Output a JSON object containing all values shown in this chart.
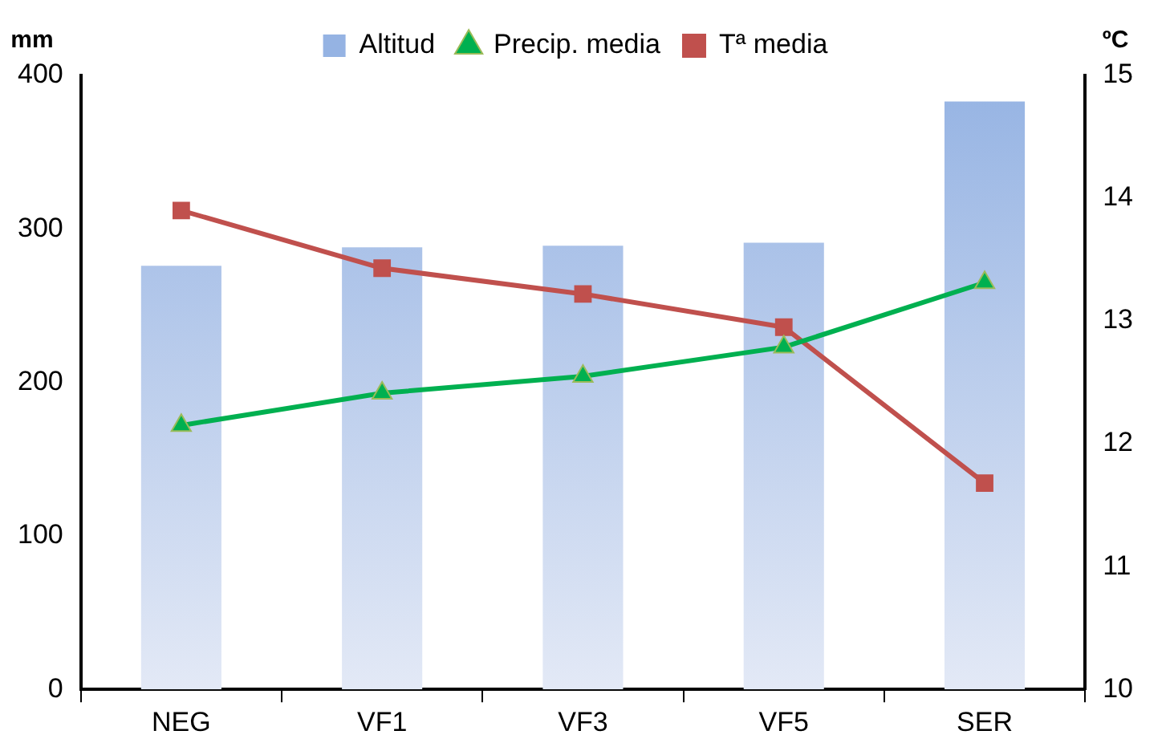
{
  "chart_data": {
    "type": "bar",
    "ylabel": "mm",
    "y2label": "ºC",
    "categories": [
      "NEG",
      "VF1",
      "VF3",
      "VF5",
      "SER"
    ],
    "series": [
      {
        "name": "Altitud",
        "color": "#95b3e3",
        "values": [
          276,
          288,
          289,
          291,
          383
        ]
      },
      {
        "name": "Precip. media",
        "type": "line",
        "color": "#00b050",
        "marker": "triangle",
        "values": [
          172,
          193,
          204,
          223,
          265
        ]
      },
      {
        "name": "Tª media",
        "type": "line",
        "color": "#c0504d",
        "marker": "square",
        "axis": "y2",
        "values": [
          13.9,
          13.43,
          13.22,
          12.95,
          11.68
        ]
      }
    ],
    "ylim": [
      0,
      400
    ],
    "yticks": [
      0,
      100,
      200,
      300,
      400
    ],
    "y2lim": [
      10,
      15
    ],
    "y2ticks": [
      10,
      11,
      12,
      13,
      14,
      15
    ],
    "legend": "top",
    "grid": false
  }
}
